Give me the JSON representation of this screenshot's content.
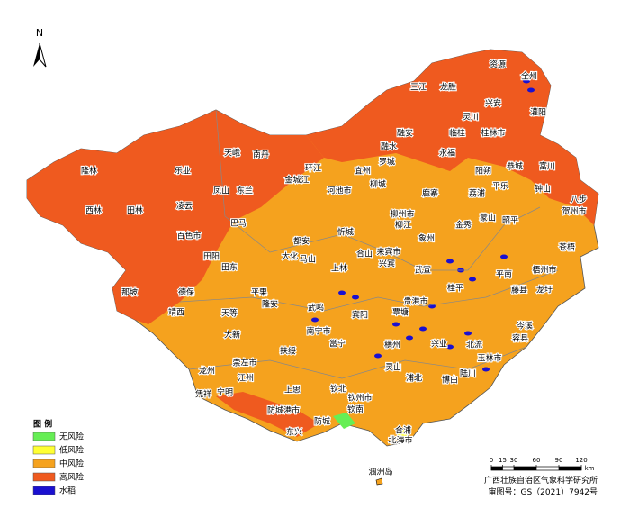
{
  "north_label": "N",
  "places": [
    "资源",
    "全州",
    "三江",
    "龙胜",
    "兴安",
    "灌阳",
    "灵川",
    "临桂",
    "桂林市",
    "融安",
    "恭城",
    "富川",
    "罗城",
    "融水",
    "永福",
    "阳朔",
    "天峨",
    "南丹",
    "环江",
    "宜州",
    "乐业",
    "隆林",
    "凤山",
    "东兰",
    "金城江",
    "河池市",
    "柳城",
    "鹿寨",
    "荔浦",
    "平乐",
    "钟山",
    "八步",
    "贺州市",
    "西林",
    "田林",
    "凌云",
    "巴马",
    "柳州市",
    "柳江",
    "象州",
    "金秀",
    "蒙山",
    "昭平",
    "百色市",
    "都安",
    "忻城",
    "田阳",
    "田东",
    "大化",
    "马山",
    "上林",
    "合山",
    "来宾市",
    "兴宾",
    "武宣",
    "平南",
    "梧州市",
    "苍梧",
    "藤县",
    "龙圩",
    "那坡",
    "德保",
    "平果",
    "靖西",
    "隆安",
    "武鸣",
    "宾阳",
    "贵港市",
    "桂平",
    "覃塘",
    "天等",
    "大新",
    "南宁市",
    "邕宁",
    "扶绥",
    "横州",
    "兴业",
    "北流",
    "岑溪",
    "容县",
    "玉林市",
    "崇左市",
    "龙州",
    "江州",
    "灵山",
    "陆川",
    "凭祥",
    "宁明",
    "上思",
    "钦北",
    "钦州市",
    "浦北",
    "博白",
    "防城港市",
    "防城",
    "钦南",
    "东兴",
    "合浦",
    "北海市",
    "涠洲岛"
  ],
  "legend": {
    "title": "图 例",
    "items": [
      {
        "label": "无风险",
        "color": "#66ee55"
      },
      {
        "label": "低风险",
        "color": "#ffff33"
      },
      {
        "label": "中风险",
        "color": "#f5a21e"
      },
      {
        "label": "高风险",
        "color": "#ef5a1f"
      },
      {
        "label": "水稻",
        "color": "#1a10d0"
      }
    ]
  },
  "scale_bar": {
    "ticks": [
      0,
      15,
      30,
      60,
      90,
      120
    ],
    "unit": "km"
  },
  "footer": {
    "institute": "广西壮族自治区气象科学研究所",
    "approval": "审图号：GS（2021）7942号"
  }
}
